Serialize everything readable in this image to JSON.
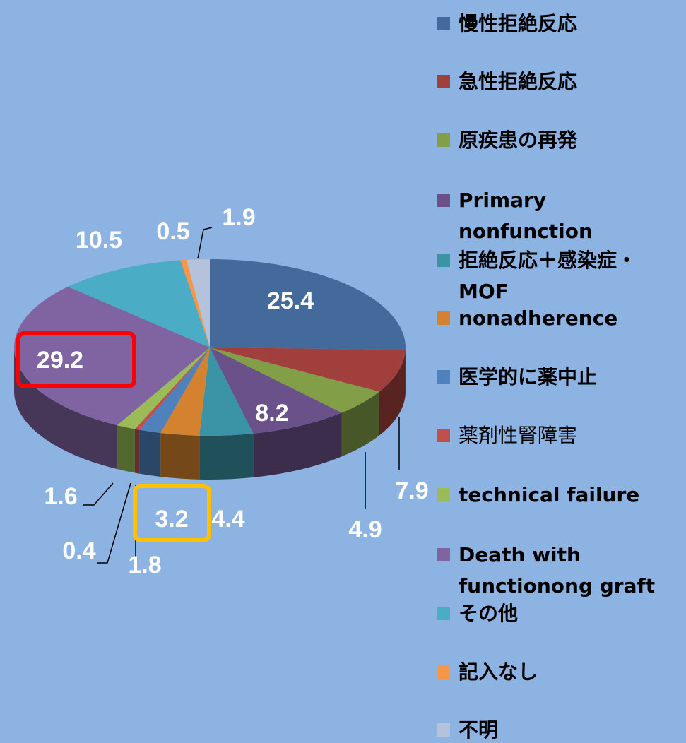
{
  "chart_data": {
    "type": "pie3d",
    "categories": [
      "慢性拒絶反応",
      "急性拒絶反応",
      "原疾患の再発",
      "Primary nonfunction",
      "拒絶反応＋感染症・MOF",
      "nonadherence",
      "医学的に薬中止",
      "薬剤性腎障害",
      "technical failure",
      "Death with functionong graft",
      "その他",
      "記入なし",
      "不明"
    ],
    "values": [
      25.4,
      7.9,
      4.9,
      8.2,
      4.4,
      3.2,
      1.8,
      0.4,
      1.6,
      29.2,
      10.5,
      0.5,
      1.9
    ],
    "colors": [
      "#44699b",
      "#a13f3c",
      "#829e47",
      "#6b5189",
      "#3b94a6",
      "#d4822f",
      "#4f81bd",
      "#c0504d",
      "#9bbb59",
      "#8064a2",
      "#4bacc6",
      "#f79646",
      "#b4c2dc"
    ],
    "legend": "right"
  }
}
